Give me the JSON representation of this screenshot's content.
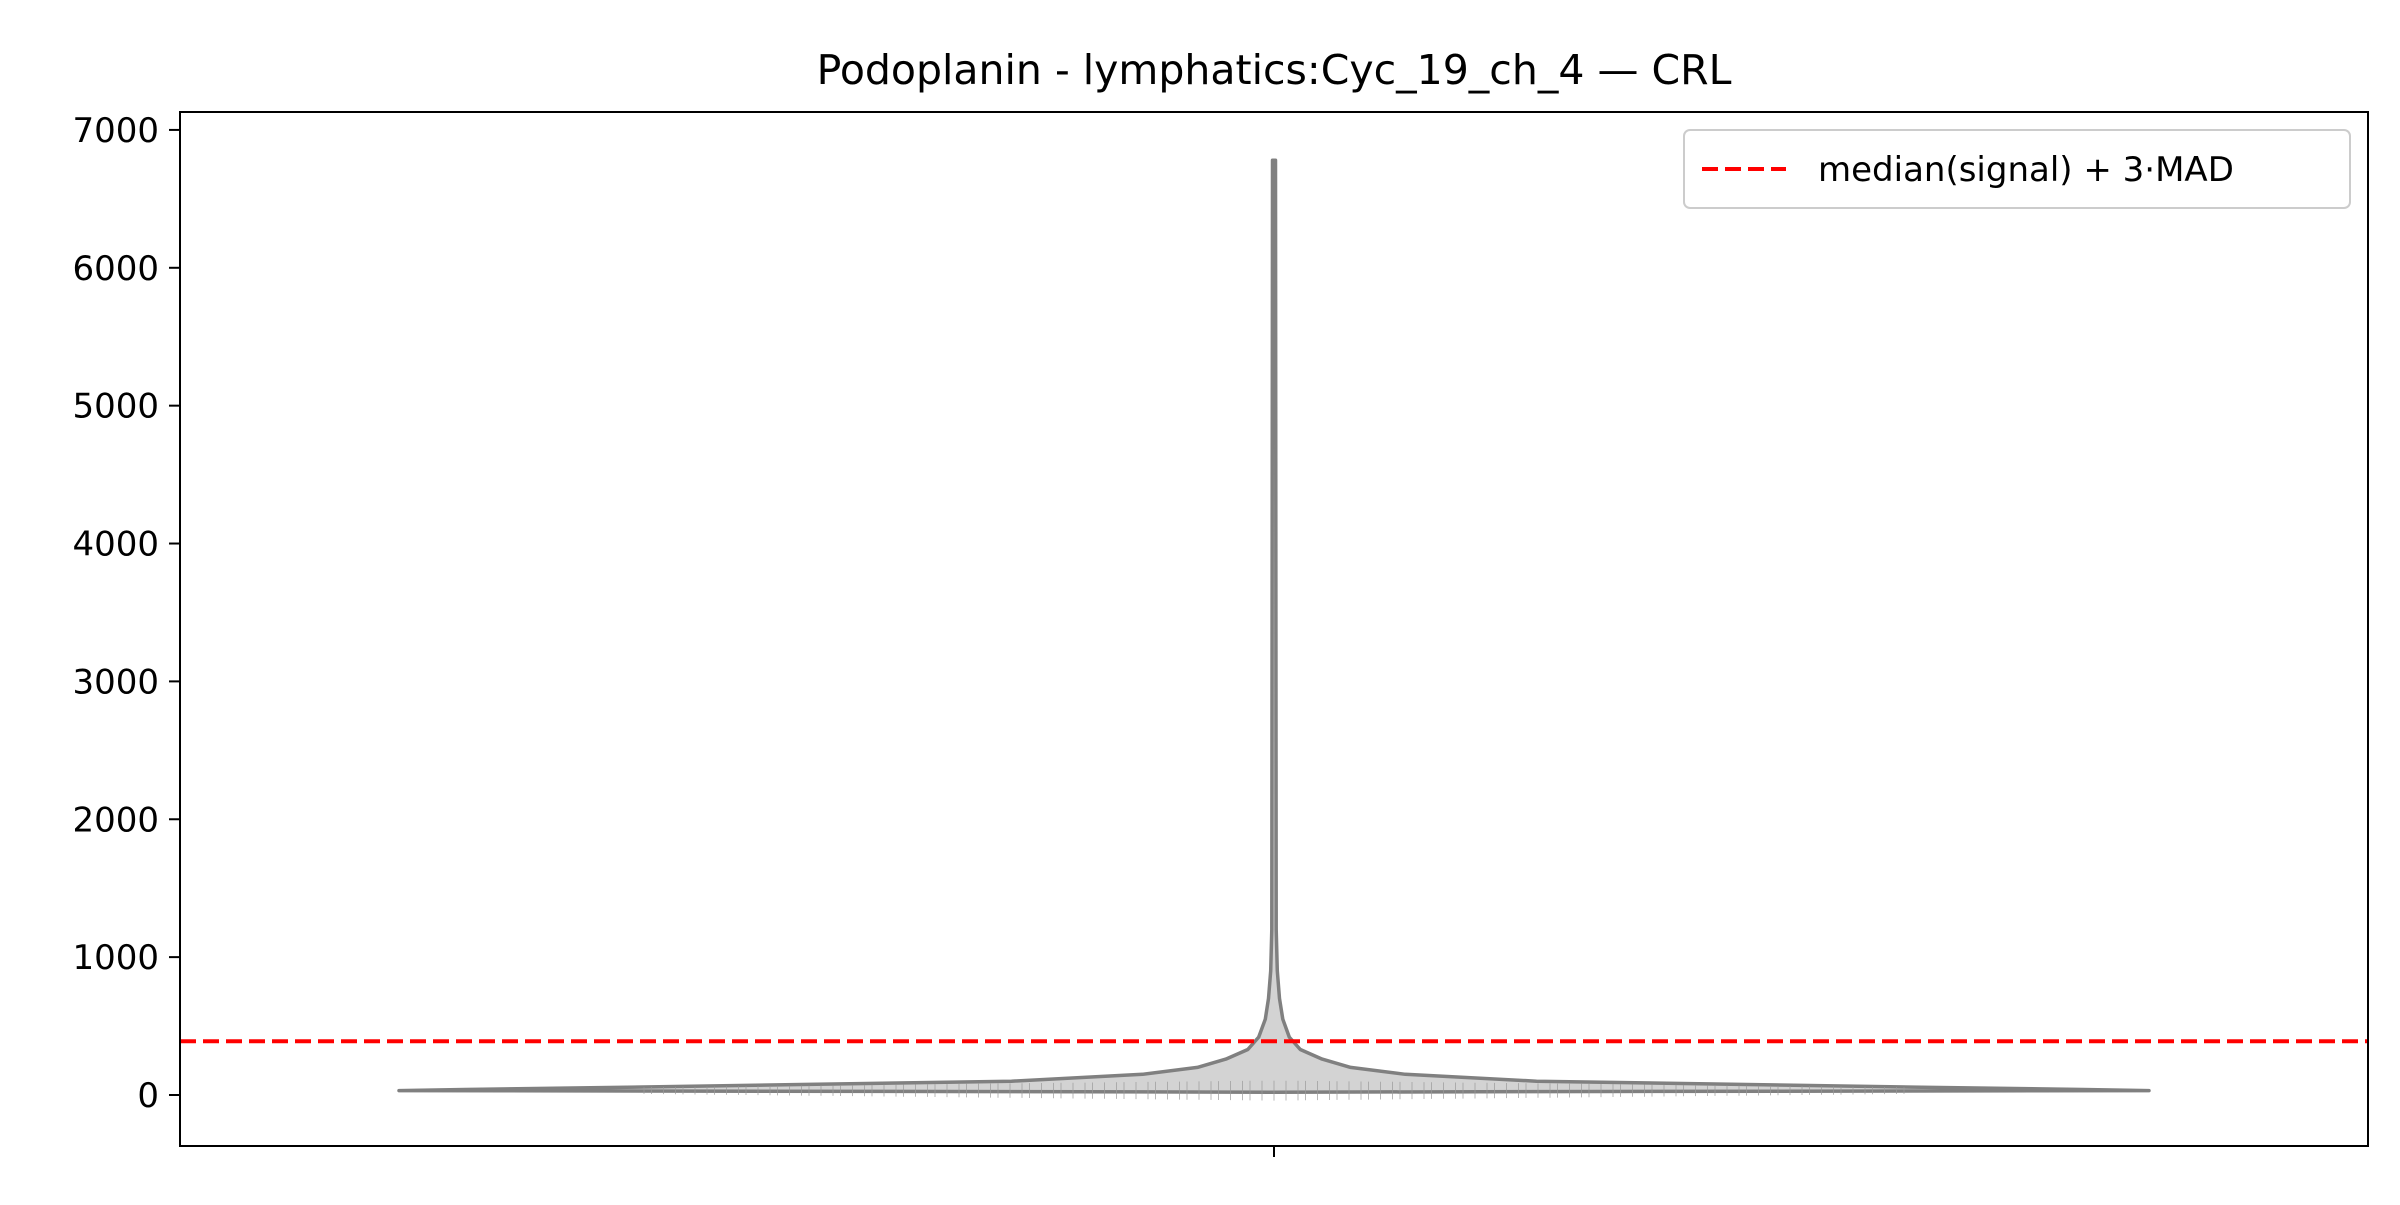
{
  "chart_data": {
    "type": "violin",
    "title": "Podoplanin - lymphatics:Cyc_19_ch_4 — CRL",
    "xlabel": "",
    "ylabel": "",
    "ylim": [
      -370,
      7130
    ],
    "yticks": [
      0,
      1000,
      2000,
      3000,
      4000,
      5000,
      6000,
      7000
    ],
    "yticklabels": [
      "0",
      "1000",
      "2000",
      "3000",
      "4000",
      "5000",
      "6000",
      "7000"
    ],
    "categories": [
      ""
    ],
    "violin": {
      "min": 20,
      "max": 6780,
      "fill_color": "#d3d3d3",
      "edge_color": "#808080",
      "density_profile": [
        {
          "y": 20,
          "half_width": 0.0
        },
        {
          "y": 25,
          "half_width": 0.15
        },
        {
          "y": 32,
          "half_width": 0.4
        },
        {
          "y": 40,
          "half_width": 0.37
        },
        {
          "y": 55,
          "half_width": 0.3
        },
        {
          "y": 75,
          "half_width": 0.22
        },
        {
          "y": 100,
          "half_width": 0.12
        },
        {
          "y": 150,
          "half_width": 0.06
        },
        {
          "y": 200,
          "half_width": 0.035
        },
        {
          "y": 260,
          "half_width": 0.022
        },
        {
          "y": 330,
          "half_width": 0.012
        },
        {
          "y": 420,
          "half_width": 0.007
        },
        {
          "y": 550,
          "half_width": 0.004
        },
        {
          "y": 700,
          "half_width": 0.0025
        },
        {
          "y": 900,
          "half_width": 0.0015
        },
        {
          "y": 1200,
          "half_width": 0.001
        },
        {
          "y": 6780,
          "half_width": 0.0007
        }
      ]
    },
    "threshold": {
      "value": 390,
      "label": "median(signal) + 3·MAD",
      "color": "#ff0000",
      "style": "dashed"
    },
    "legend": {
      "position": "top-right",
      "entries": [
        "median(signal) + 3·MAD"
      ]
    },
    "grid": false
  }
}
